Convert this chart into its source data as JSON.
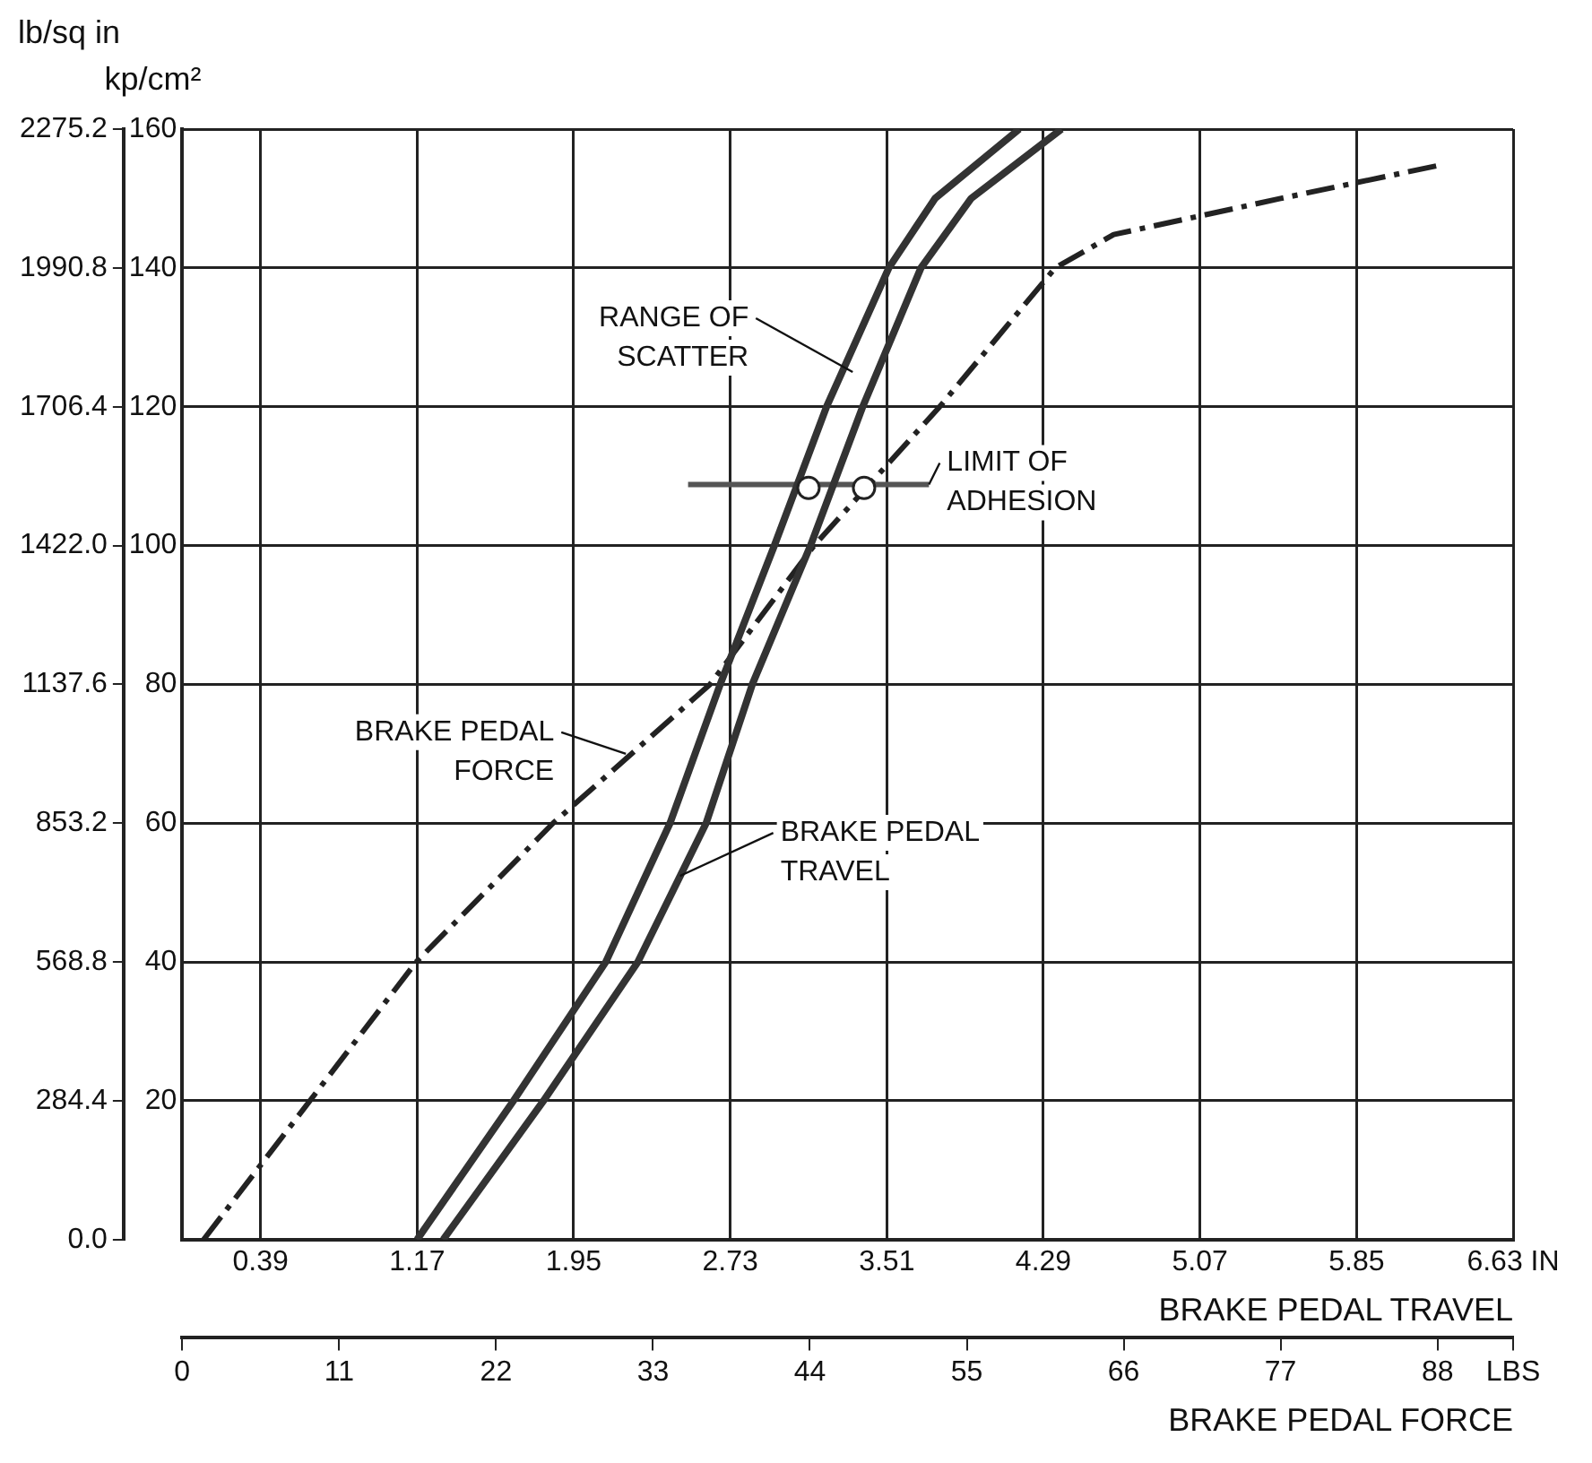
{
  "chart_data": {
    "type": "line",
    "xlabel": "BRAKE PEDAL TRAVEL",
    "x2label": "BRAKE PEDAL FORCE",
    "ylabel": "kp/cm²",
    "y2label": "lb/sq in",
    "xlim": [
      0,
      6.63
    ],
    "xticks": [
      0.39,
      1.17,
      1.95,
      2.73,
      3.51,
      4.29,
      5.07,
      5.85,
      {
        "value": 6.63,
        "label": "6.63 IN"
      }
    ],
    "x2lim": [
      0,
      93.3
    ],
    "x2ticks": [
      0,
      11,
      22,
      33,
      44,
      55,
      66,
      77,
      88,
      {
        "value": 93.3,
        "label": "LBS"
      }
    ],
    "ylim": [
      0,
      160
    ],
    "yticks": [
      {
        "value": 0,
        "label": null
      },
      20,
      40,
      60,
      80,
      100,
      120,
      140,
      160
    ],
    "y2lim": [
      0,
      2275.2
    ],
    "y2ticks": [
      {
        "value": 0,
        "label": "0.0"
      },
      284.4,
      568.8,
      853.2,
      1137.6,
      {
        "value": 1422,
        "label": "1422.0"
      },
      1706.4,
      1990.8,
      2275.2
    ],
    "grid": true,
    "legend": false,
    "series": [
      {
        "type": "line",
        "color": "#333333",
        "x": [
          1.17,
          1.65,
          2.11,
          2.43,
          2.68,
          2.95,
          3.21,
          3.52,
          3.75,
          4.17
        ],
        "values": [
          0,
          20,
          40,
          60,
          80,
          100,
          120,
          140,
          150,
          160
        ]
      },
      {
        "type": "line",
        "color": "#333333",
        "x": [
          1.3,
          1.8,
          2.27,
          2.61,
          2.84,
          3.13,
          3.39,
          3.68,
          3.93,
          4.38
        ],
        "values": [
          0,
          20,
          40,
          60,
          80,
          100,
          120,
          140,
          150,
          160
        ]
      },
      {
        "type": "line",
        "axis": "x2",
        "color": "#222222",
        "line_style": "dashed",
        "x": [
          1.5,
          16.4,
          26,
          37,
          44.3,
          53.1,
          61.2,
          65.3,
          77,
          88.4
        ],
        "values": [
          0,
          40,
          60,
          80,
          100,
          120,
          140,
          144.8,
          150,
          154.9
        ]
      },
      {
        "type": "line",
        "color": "#555555",
        "x": [
          2.52,
          3.72
        ],
        "values": [
          108.8,
          108.8
        ]
      },
      {
        "type": "scatter",
        "color": "#222222",
        "marker": "circle",
        "x": [
          3.12
        ],
        "values": [
          108.3
        ]
      },
      {
        "type": "scatter",
        "axis": "x2",
        "color": "#222222",
        "marker": "circle",
        "x": [
          47.8
        ],
        "values": [
          108.3
        ]
      }
    ],
    "annotations": [
      {
        "text": "RANGE OF\nSCATTER",
        "x": 3.34,
        "y": 125
      },
      {
        "text": "LIMIT OF\nADHESION",
        "x": 3.72,
        "y": 108.8
      },
      {
        "text": "BRAKE PEDAL\nFORCE",
        "x": 2.21,
        "y": 70
      },
      {
        "text": "BRAKE PEDAL\nTRAVEL",
        "x": 2.48,
        "y": 52.4
      }
    ]
  }
}
